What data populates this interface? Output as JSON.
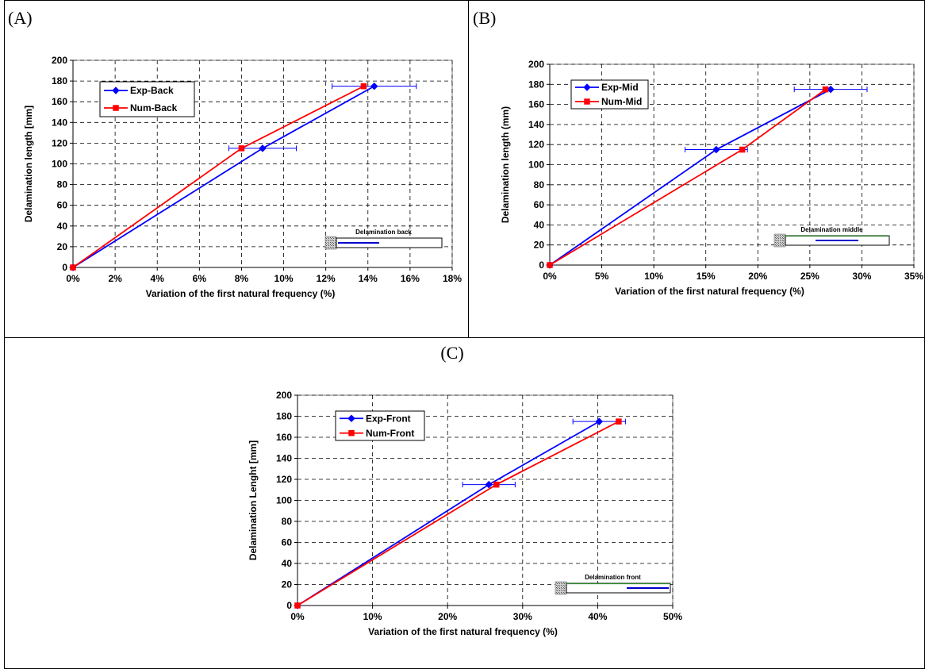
{
  "panels": [
    {
      "label": "(A)"
    },
    {
      "label": "(B)"
    },
    {
      "label": "(C)"
    }
  ],
  "chart_data": [
    {
      "type": "line",
      "panel": "(A)",
      "xlabel": "Variation of the first natural frequency (%)",
      "ylabel": "Delamination length [mm]",
      "xlim": [
        0,
        18
      ],
      "ylim": [
        0,
        200
      ],
      "x_ticks": [
        "0%",
        "2%",
        "4%",
        "6%",
        "8%",
        "10%",
        "12%",
        "14%",
        "16%",
        "18%"
      ],
      "y_ticks": [
        "0",
        "20",
        "40",
        "60",
        "80",
        "100",
        "120",
        "140",
        "160",
        "180",
        "200"
      ],
      "grid": true,
      "legend_position": "top-left",
      "inset_label": "Delamination back",
      "series": [
        {
          "name": "Exp-Back",
          "color": "#0000ff",
          "marker": "diamond",
          "points": [
            [
              0,
              0
            ],
            [
              9.0,
              115
            ],
            [
              14.3,
              175
            ]
          ],
          "x_error": [
            0,
            1.6,
            2.0
          ]
        },
        {
          "name": "Num-Back",
          "color": "#ff0000",
          "marker": "square",
          "points": [
            [
              0,
              0
            ],
            [
              8.0,
              115
            ],
            [
              13.8,
              175
            ]
          ]
        }
      ]
    },
    {
      "type": "line",
      "panel": "(B)",
      "xlabel": "Variation of the first natural frequency (%)",
      "ylabel": "Delamination length (mm)",
      "xlim": [
        0,
        35
      ],
      "ylim": [
        0,
        200
      ],
      "x_ticks": [
        "0%",
        "5%",
        "10%",
        "15%",
        "20%",
        "25%",
        "30%",
        "35%"
      ],
      "y_ticks": [
        "0",
        "20",
        "40",
        "60",
        "80",
        "100",
        "120",
        "140",
        "160",
        "180",
        "200"
      ],
      "grid": true,
      "legend_position": "top-left",
      "inset_label": "Delamination middle",
      "series": [
        {
          "name": "Exp-Mid",
          "color": "#0000ff",
          "marker": "diamond",
          "points": [
            [
              0,
              0
            ],
            [
              16.0,
              115
            ],
            [
              27.0,
              175
            ]
          ],
          "x_error": [
            0,
            3.0,
            3.5
          ]
        },
        {
          "name": "Num-Mid",
          "color": "#ff0000",
          "marker": "square",
          "points": [
            [
              0,
              0
            ],
            [
              18.5,
              115
            ],
            [
              26.5,
              175
            ]
          ]
        }
      ]
    },
    {
      "type": "line",
      "panel": "(C)",
      "xlabel": "Variation of the first natural frequency (%)",
      "ylabel": "Delamination Lenght [mm]",
      "xlim": [
        0,
        50
      ],
      "ylim": [
        0,
        200
      ],
      "x_ticks": [
        "0%",
        "10%",
        "20%",
        "30%",
        "40%",
        "50%"
      ],
      "y_ticks": [
        "0",
        "20",
        "40",
        "60",
        "80",
        "100",
        "120",
        "140",
        "160",
        "180",
        "200"
      ],
      "grid": true,
      "legend_position": "top-left",
      "inset_label": "Delamination front",
      "series": [
        {
          "name": "Exp-Front",
          "color": "#0000ff",
          "marker": "diamond",
          "points": [
            [
              0,
              0
            ],
            [
              25.5,
              115
            ],
            [
              40.2,
              175
            ]
          ],
          "x_error": [
            0,
            3.5,
            3.5
          ]
        },
        {
          "name": "Num-Front",
          "color": "#ff0000",
          "marker": "square",
          "points": [
            [
              0,
              0
            ],
            [
              26.5,
              115
            ],
            [
              42.8,
              175
            ]
          ]
        }
      ]
    }
  ]
}
